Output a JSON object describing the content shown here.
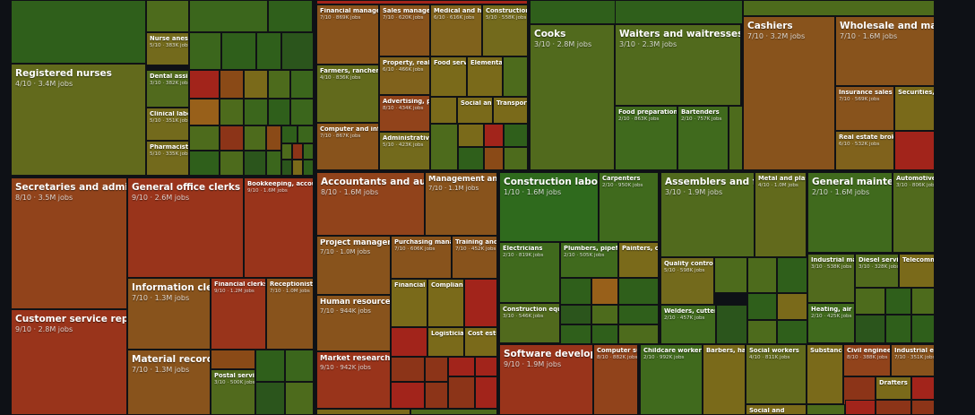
{
  "chart_data": {
    "type": "treemap",
    "title": "",
    "value_unit": "jobs",
    "score_unit": "/10",
    "color_scale": {
      "low": "#a1241b",
      "mid": "#7c6a1c",
      "high": "#2f6a1d"
    },
    "labeled_tiles": [
      {
        "label": "Registered nurses",
        "score": 4,
        "jobs": "3.4M"
      },
      {
        "label": "Nurse anesthe",
        "score": 5,
        "jobs": "383K"
      },
      {
        "label": "Dental assista",
        "score": 3,
        "jobs": "382K"
      },
      {
        "label": "Clinical labora",
        "score": 5,
        "jobs": "351K"
      },
      {
        "label": "Pharmacists",
        "score": 5,
        "jobs": "335K"
      },
      {
        "label": "Financial managers",
        "score": 7,
        "jobs": "869K"
      },
      {
        "label": "Sales managers",
        "score": 7,
        "jobs": "620K"
      },
      {
        "label": "Medical and hea",
        "score": 6,
        "jobs": "616K"
      },
      {
        "label": "Construction m",
        "score": 5,
        "jobs": "558K"
      },
      {
        "label": "Farmers, ranchers, a",
        "score": 4,
        "jobs": "836K"
      },
      {
        "label": "Property, real es",
        "score": 6,
        "jobs": "466K"
      },
      {
        "label": "Food servic",
        "score": null,
        "jobs": null
      },
      {
        "label": "Elementar",
        "score": null,
        "jobs": null
      },
      {
        "label": "Advertising, pro",
        "score": 8,
        "jobs": "434K"
      },
      {
        "label": "Social and",
        "score": null,
        "jobs": null
      },
      {
        "label": "Transportat",
        "score": null,
        "jobs": null
      },
      {
        "label": "Computer and infor",
        "score": 7,
        "jobs": "867K"
      },
      {
        "label": "Administrative s",
        "score": 5,
        "jobs": "423K"
      },
      {
        "label": "Cooks",
        "score": 3,
        "jobs": "2.8M"
      },
      {
        "label": "Waiters and waitresses",
        "score": 3,
        "jobs": "2.3M"
      },
      {
        "label": "Food preparation w",
        "score": 2,
        "jobs": "863K"
      },
      {
        "label": "Bartenders",
        "score": 2,
        "jobs": "757K"
      },
      {
        "label": "Cashiers",
        "score": 7,
        "jobs": "3.2M"
      },
      {
        "label": "Wholesale and manufac",
        "score": 7,
        "jobs": "1.6M"
      },
      {
        "label": "Insurance sales age",
        "score": 7,
        "jobs": "569K"
      },
      {
        "label": "Securities, c",
        "score": null,
        "jobs": null
      },
      {
        "label": "Real estate brokers",
        "score": 6,
        "jobs": "532K"
      },
      {
        "label": "Secretaries and administrat",
        "score": 8,
        "jobs": "3.5M"
      },
      {
        "label": "General office clerks",
        "score": 9,
        "jobs": "2.6M"
      },
      {
        "label": "Bookkeeping, accou",
        "score": 9,
        "jobs": "1.6M"
      },
      {
        "label": "Information clerks",
        "score": 7,
        "jobs": "1.3M"
      },
      {
        "label": "Financial clerks",
        "score": 9,
        "jobs": "1.2M"
      },
      {
        "label": "Receptionists",
        "score": 7,
        "jobs": "1.0M"
      },
      {
        "label": "Customer service represent",
        "score": 9,
        "jobs": "2.8M"
      },
      {
        "label": "Material recording cl",
        "score": 7,
        "jobs": "1.3M"
      },
      {
        "label": "Postal service",
        "score": 3,
        "jobs": "500K"
      },
      {
        "label": "Accountants and auditors",
        "score": 8,
        "jobs": "1.6M"
      },
      {
        "label": "Management analys",
        "score": 7,
        "jobs": "1.1M"
      },
      {
        "label": "Project managemen",
        "score": 7,
        "jobs": "1.0M"
      },
      {
        "label": "Purchasing manage",
        "score": 7,
        "jobs": "606K"
      },
      {
        "label": "Training and d",
        "score": 7,
        "jobs": "452K"
      },
      {
        "label": "Financial an",
        "score": null,
        "jobs": null
      },
      {
        "label": "Complianc",
        "score": null,
        "jobs": null
      },
      {
        "label": "Human resources sp",
        "score": 7,
        "jobs": "944K"
      },
      {
        "label": "Logisticians",
        "score": null,
        "jobs": null
      },
      {
        "label": "Cost estim",
        "score": null,
        "jobs": null
      },
      {
        "label": "Market research ana",
        "score": 9,
        "jobs": "942K"
      },
      {
        "label": "Construction laborers a",
        "score": 1,
        "jobs": "1.6M"
      },
      {
        "label": "Carpenters",
        "score": 2,
        "jobs": "950K"
      },
      {
        "label": "Electricians",
        "score": 2,
        "jobs": "819K"
      },
      {
        "label": "Plumbers, pipefitte",
        "score": 2,
        "jobs": "505K"
      },
      {
        "label": "Painters, co",
        "score": null,
        "jobs": null
      },
      {
        "label": "Construction equip",
        "score": 3,
        "jobs": "546K"
      },
      {
        "label": "Software developers,",
        "score": 9,
        "jobs": "1.9M"
      },
      {
        "label": "Computer su",
        "score": 8,
        "jobs": "882K"
      },
      {
        "label": "Assemblers and fabric",
        "score": 3,
        "jobs": "1.9M"
      },
      {
        "label": "Metal and plast",
        "score": 4,
        "jobs": "1.0M"
      },
      {
        "label": "Quality control in",
        "score": 5,
        "jobs": "598K"
      },
      {
        "label": "Welders, cutters,",
        "score": 2,
        "jobs": "457K"
      },
      {
        "label": "General maintenanc",
        "score": 2,
        "jobs": "1.6M"
      },
      {
        "label": "Automotive s",
        "score": 3,
        "jobs": "806K"
      },
      {
        "label": "Industrial mach",
        "score": 3,
        "jobs": "538K"
      },
      {
        "label": "Diesel servic",
        "score": 3,
        "jobs": "328K"
      },
      {
        "label": "Telecomm",
        "score": null,
        "jobs": null
      },
      {
        "label": "Heating, air co",
        "score": 2,
        "jobs": "425K"
      },
      {
        "label": "Childcare workers",
        "score": 2,
        "jobs": "992K"
      },
      {
        "label": "Barbers, hai",
        "score": null,
        "jobs": null
      },
      {
        "label": "Social workers",
        "score": 4,
        "jobs": "811K"
      },
      {
        "label": "Substance",
        "score": null,
        "jobs": null
      },
      {
        "label": "Civil engineers",
        "score": 8,
        "jobs": "388K"
      },
      {
        "label": "Industrial eng",
        "score": 7,
        "jobs": "351K"
      },
      {
        "label": "Drafters",
        "score": null,
        "jobs": null
      },
      {
        "label": "Social and",
        "score": null,
        "jobs": null
      }
    ]
  }
}
